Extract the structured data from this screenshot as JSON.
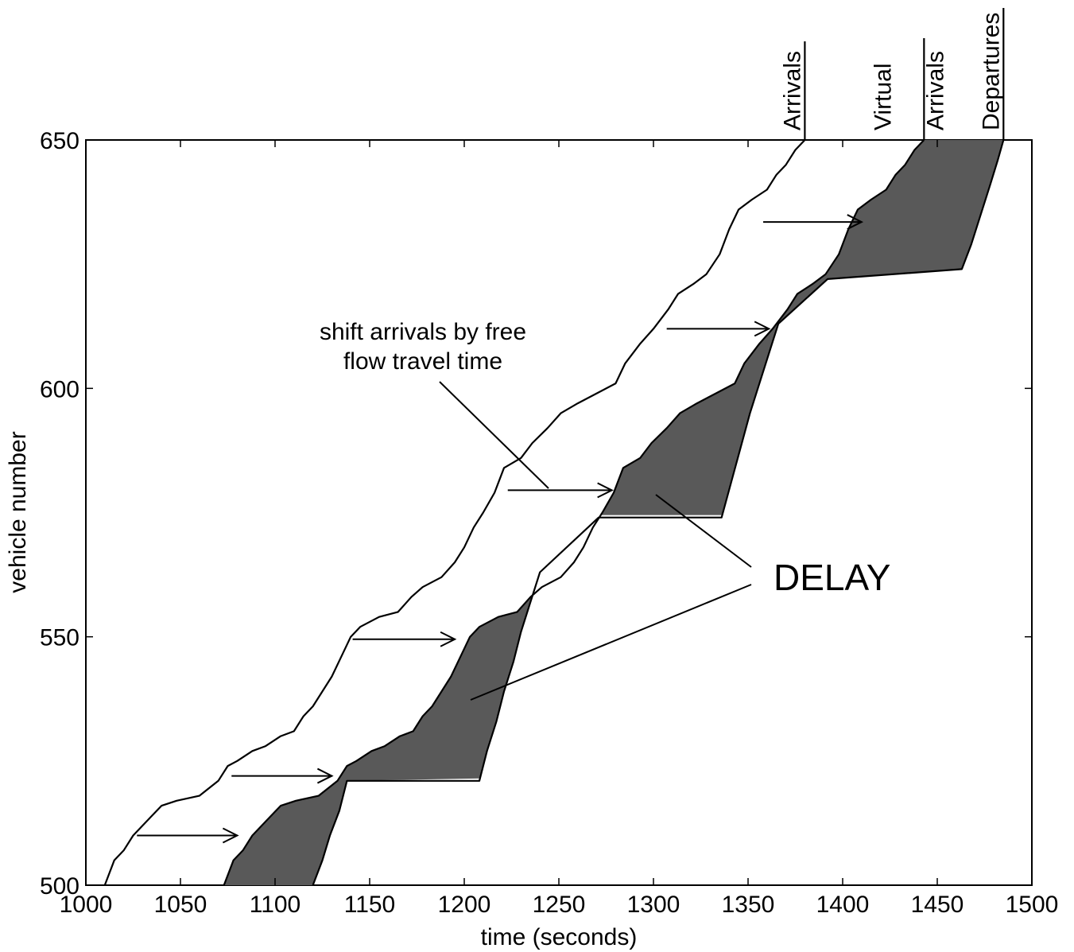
{
  "chart_data": {
    "type": "line",
    "title": "",
    "xlabel": "time (seconds)",
    "ylabel": "vehicle number",
    "xlim": [
      1000,
      1500
    ],
    "ylim": [
      500,
      650
    ],
    "xticks": [
      1000,
      1050,
      1100,
      1150,
      1200,
      1250,
      1300,
      1350,
      1400,
      1450,
      1500
    ],
    "yticks": [
      500,
      550,
      600,
      650
    ],
    "grid": false,
    "fill_color": "#595959",
    "line_color": "#000000",
    "series": [
      {
        "name": "Arrivals",
        "points": [
          [
            1010,
            500
          ],
          [
            1015,
            505
          ],
          [
            1020,
            507
          ],
          [
            1025,
            510
          ],
          [
            1030,
            512
          ],
          [
            1035,
            514
          ],
          [
            1040,
            516
          ],
          [
            1048,
            517
          ],
          [
            1060,
            518
          ],
          [
            1070,
            521
          ],
          [
            1075,
            524
          ],
          [
            1080,
            525
          ],
          [
            1088,
            527
          ],
          [
            1095,
            528
          ],
          [
            1103,
            530
          ],
          [
            1110,
            531
          ],
          [
            1115,
            534
          ],
          [
            1120,
            536
          ],
          [
            1125,
            539
          ],
          [
            1130,
            542
          ],
          [
            1135,
            546
          ],
          [
            1140,
            550
          ],
          [
            1145,
            552
          ],
          [
            1155,
            554
          ],
          [
            1165,
            555
          ],
          [
            1172,
            558
          ],
          [
            1178,
            560
          ],
          [
            1188,
            562
          ],
          [
            1195,
            565
          ],
          [
            1200,
            568
          ],
          [
            1205,
            572
          ],
          [
            1210,
            575
          ],
          [
            1216,
            579
          ],
          [
            1221,
            584
          ],
          [
            1230,
            586
          ],
          [
            1236,
            589
          ],
          [
            1244,
            592
          ],
          [
            1251,
            595
          ],
          [
            1260,
            597
          ],
          [
            1270,
            599
          ],
          [
            1280,
            601
          ],
          [
            1285,
            605
          ],
          [
            1293,
            609
          ],
          [
            1300,
            612
          ],
          [
            1308,
            616
          ],
          [
            1313,
            619
          ],
          [
            1321,
            621
          ],
          [
            1328,
            623
          ],
          [
            1335,
            627
          ],
          [
            1340,
            632
          ],
          [
            1345,
            636
          ],
          [
            1352,
            638
          ],
          [
            1360,
            640
          ],
          [
            1365,
            643
          ],
          [
            1370,
            645
          ],
          [
            1375,
            648
          ],
          [
            1380,
            650
          ]
        ]
      },
      {
        "name": "Virtual Arrivals",
        "points": [
          [
            1073,
            500
          ],
          [
            1078,
            505
          ],
          [
            1083,
            507
          ],
          [
            1088,
            510
          ],
          [
            1093,
            512
          ],
          [
            1098,
            514
          ],
          [
            1103,
            516
          ],
          [
            1111,
            517
          ],
          [
            1123,
            518
          ],
          [
            1133,
            521
          ],
          [
            1138,
            524
          ],
          [
            1143,
            525
          ],
          [
            1151,
            527
          ],
          [
            1158,
            528
          ],
          [
            1166,
            530
          ],
          [
            1173,
            531
          ],
          [
            1178,
            534
          ],
          [
            1183,
            536
          ],
          [
            1188,
            539
          ],
          [
            1193,
            542
          ],
          [
            1198,
            546
          ],
          [
            1203,
            550
          ],
          [
            1208,
            552
          ],
          [
            1218,
            554
          ],
          [
            1228,
            555
          ],
          [
            1235,
            558
          ],
          [
            1241,
            560
          ],
          [
            1251,
            562
          ],
          [
            1258,
            565
          ],
          [
            1263,
            568
          ],
          [
            1268,
            572
          ],
          [
            1273,
            575
          ],
          [
            1279,
            579
          ],
          [
            1284,
            584
          ],
          [
            1293,
            586
          ],
          [
            1299,
            589
          ],
          [
            1307,
            592
          ],
          [
            1314,
            595
          ],
          [
            1323,
            597
          ],
          [
            1333,
            599
          ],
          [
            1343,
            601
          ],
          [
            1348,
            605
          ],
          [
            1356,
            609
          ],
          [
            1363,
            612
          ],
          [
            1371,
            616
          ],
          [
            1376,
            619
          ],
          [
            1384,
            621
          ],
          [
            1391,
            623
          ],
          [
            1398,
            627
          ],
          [
            1403,
            632
          ],
          [
            1408,
            636
          ],
          [
            1415,
            638
          ],
          [
            1423,
            640
          ],
          [
            1428,
            643
          ],
          [
            1433,
            645
          ],
          [
            1438,
            648
          ],
          [
            1443,
            650
          ]
        ]
      },
      {
        "name": "Departures",
        "points": [
          [
            1120,
            500
          ],
          [
            1125,
            505
          ],
          [
            1129,
            510
          ],
          [
            1134,
            515
          ],
          [
            1138,
            521
          ],
          [
            1208,
            521
          ],
          [
            1212,
            527
          ],
          [
            1217,
            533
          ],
          [
            1221,
            539
          ],
          [
            1226,
            545
          ],
          [
            1230,
            551
          ],
          [
            1235,
            557
          ],
          [
            1240,
            563
          ],
          [
            1271,
            574
          ],
          [
            1336,
            574
          ],
          [
            1341,
            581
          ],
          [
            1346,
            588
          ],
          [
            1351,
            595
          ],
          [
            1356,
            601
          ],
          [
            1361,
            607
          ],
          [
            1366,
            613
          ],
          [
            1392,
            622
          ],
          [
            1463,
            624
          ],
          [
            1468,
            629
          ],
          [
            1473,
            635
          ],
          [
            1478,
            641
          ],
          [
            1482,
            646
          ],
          [
            1485,
            650
          ]
        ]
      }
    ],
    "annotations": {
      "shift_text_line1": "shift arrivals by free",
      "shift_text_line2": "flow travel time",
      "delay_text": "DELAY"
    },
    "top_labels": {
      "arrivals": "Arrivals",
      "virtual_line1": "Virtual",
      "virtual_line2": "Arrivals",
      "departures": "Departures"
    }
  }
}
